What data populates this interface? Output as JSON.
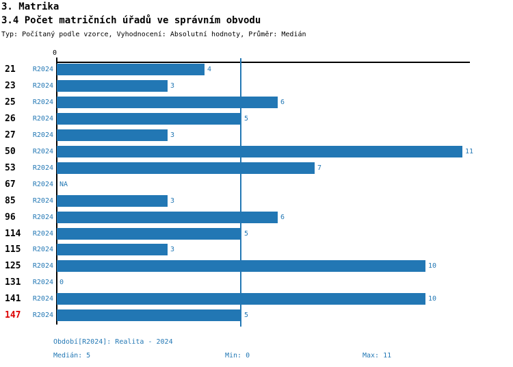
{
  "title": "3. Matrika",
  "subtitle": "3.4 Počet matričních úřadů ve správním obvodu",
  "meta": "Typ: Počítaný podle vzorce, Vyhodnocení: Absolutní hodnoty, Průměr: Medián",
  "colors": {
    "bar_blue": "#2277b4",
    "text_blue": "#2277b4",
    "highlight_red": "#dd0000",
    "axis_black": "#000000"
  },
  "axis": {
    "zero_tick_label": "0"
  },
  "chart_data": {
    "type": "bar",
    "orientation": "horizontal",
    "title": "3.4 Počet matričních úřadů ve správním obvodu",
    "series_name": "R2024",
    "categories": [
      "21",
      "23",
      "25",
      "26",
      "27",
      "50",
      "53",
      "67",
      "85",
      "96",
      "114",
      "115",
      "125",
      "131",
      "141",
      "147"
    ],
    "values": [
      4,
      3,
      6,
      5,
      3,
      11,
      7,
      null,
      3,
      6,
      5,
      3,
      10,
      0,
      10,
      5
    ],
    "value_labels": [
      "4",
      "3",
      "6",
      "5",
      "3",
      "11",
      "7",
      "NA",
      "3",
      "6",
      "5",
      "3",
      "10",
      "0",
      "10",
      "5"
    ],
    "highlighted_category": "147",
    "xlim": [
      0,
      11.2
    ],
    "x_tick_labels": [
      "0"
    ],
    "median": 5,
    "min": 0,
    "max": 11,
    "median_gridline": true,
    "grid": "median-line-only",
    "legend": "none"
  },
  "footer": {
    "period_label": "Období[R2024]: Realita - 2024",
    "median_label": "Medián: 5",
    "min_label": "Min: 0",
    "max_label": "Max: 11"
  }
}
